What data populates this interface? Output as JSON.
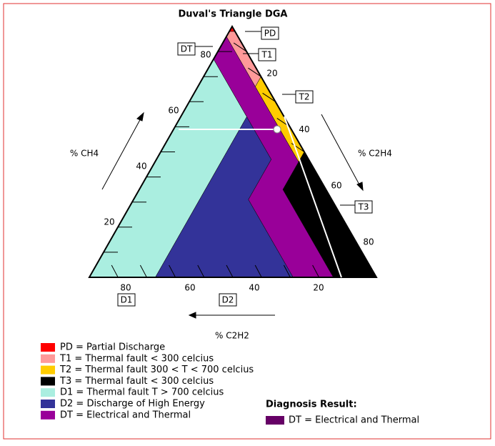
{
  "title": "Duval's Triangle DGA",
  "axes": {
    "ch4": {
      "label": "% CH4",
      "ticks": [
        20,
        40,
        60,
        80
      ]
    },
    "c2h4": {
      "label": "% C2H4",
      "ticks": [
        20,
        40,
        60,
        80
      ]
    },
    "c2h2": {
      "label": "% C2H2",
      "ticks": [
        80,
        60,
        40,
        20
      ]
    }
  },
  "zone_tags": [
    "PD",
    "T1",
    "T2",
    "T3",
    "DT",
    "D1",
    "D2"
  ],
  "legend": [
    {
      "text": "PD = Partial Discharge",
      "color": "#ff0000"
    },
    {
      "text": "T1 = Thermal fault < 300 celcius",
      "color": "#ff9999"
    },
    {
      "text": "T2 = Thermal fault 300 < T < 700 celcius",
      "color": "#ffcc00"
    },
    {
      "text": "T3 = Thermal fault < 300 celcius",
      "color": "#000000"
    },
    {
      "text": "D1 = Thermal fault T > 700 celcius",
      "color": "#aaeee0"
    },
    {
      "text": "D2 = Discharge of High Energy",
      "color": "#333399"
    },
    {
      "text": "DT = Electrical and Thermal",
      "color": "#990099"
    }
  ],
  "diagnosis": {
    "heading": "Diagnosis Result:",
    "text": "DT = Electrical and Thermal",
    "color": "#660066"
  }
}
